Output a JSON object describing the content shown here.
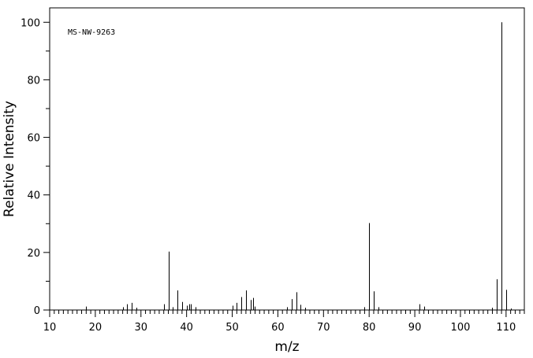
{
  "chart_data": {
    "type": "bar",
    "title": "",
    "annotation": "MS-NW-9263",
    "xlabel": "m/z",
    "ylabel": "Relative Intensity",
    "xlim": [
      10,
      114
    ],
    "ylim": [
      0,
      105
    ],
    "x_ticks": [
      10,
      20,
      30,
      40,
      50,
      60,
      70,
      80,
      90,
      100,
      110
    ],
    "y_ticks": [
      0,
      20,
      40,
      60,
      80,
      100
    ],
    "grid": false,
    "legend": "none",
    "color": "#000000",
    "peaks": [
      {
        "mz": 18,
        "intensity": 1.2
      },
      {
        "mz": 26,
        "intensity": 1.0
      },
      {
        "mz": 27,
        "intensity": 2.0
      },
      {
        "mz": 28,
        "intensity": 2.5
      },
      {
        "mz": 29,
        "intensity": 0.8
      },
      {
        "mz": 35,
        "intensity": 2.0
      },
      {
        "mz": 36,
        "intensity": 20.3
      },
      {
        "mz": 37,
        "intensity": 1.0
      },
      {
        "mz": 38,
        "intensity": 6.8
      },
      {
        "mz": 39,
        "intensity": 2.8
      },
      {
        "mz": 40,
        "intensity": 1.5
      },
      {
        "mz": 40.5,
        "intensity": 2.0
      },
      {
        "mz": 41,
        "intensity": 2.0
      },
      {
        "mz": 42,
        "intensity": 1.0
      },
      {
        "mz": 50,
        "intensity": 1.5
      },
      {
        "mz": 51,
        "intensity": 2.5
      },
      {
        "mz": 52,
        "intensity": 4.5
      },
      {
        "mz": 53,
        "intensity": 6.8
      },
      {
        "mz": 54,
        "intensity": 3.5
      },
      {
        "mz": 54.5,
        "intensity": 4.2
      },
      {
        "mz": 55,
        "intensity": 1.2
      },
      {
        "mz": 62,
        "intensity": 1.0
      },
      {
        "mz": 63,
        "intensity": 3.8
      },
      {
        "mz": 64,
        "intensity": 6.2
      },
      {
        "mz": 65,
        "intensity": 1.8
      },
      {
        "mz": 66,
        "intensity": 0.8
      },
      {
        "mz": 79,
        "intensity": 1.0
      },
      {
        "mz": 80,
        "intensity": 30.2
      },
      {
        "mz": 81,
        "intensity": 6.5
      },
      {
        "mz": 82,
        "intensity": 1.0
      },
      {
        "mz": 91,
        "intensity": 2.0
      },
      {
        "mz": 92,
        "intensity": 1.2
      },
      {
        "mz": 107,
        "intensity": 0.8
      },
      {
        "mz": 108,
        "intensity": 10.7
      },
      {
        "mz": 109,
        "intensity": 100.0
      },
      {
        "mz": 110,
        "intensity": 7.0
      },
      {
        "mz": 111,
        "intensity": 0.5
      }
    ]
  }
}
